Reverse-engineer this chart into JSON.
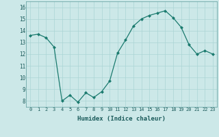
{
  "x": [
    0,
    1,
    2,
    3,
    4,
    5,
    6,
    7,
    8,
    9,
    10,
    11,
    12,
    13,
    14,
    15,
    16,
    17,
    18,
    19,
    20,
    21,
    22,
    23
  ],
  "y": [
    13.6,
    13.7,
    13.4,
    12.6,
    8.0,
    8.5,
    7.9,
    8.7,
    8.3,
    8.8,
    9.7,
    12.1,
    13.2,
    14.4,
    15.0,
    15.3,
    15.5,
    15.7,
    15.1,
    14.3,
    12.8,
    12.0,
    12.3,
    12.0
  ],
  "xlabel": "Humidex (Indice chaleur)",
  "ylim": [
    7.5,
    16.5
  ],
  "xlim": [
    -0.5,
    23.5
  ],
  "yticks": [
    8,
    9,
    10,
    11,
    12,
    13,
    14,
    15,
    16
  ],
  "xticks": [
    0,
    1,
    2,
    3,
    4,
    5,
    6,
    7,
    8,
    9,
    10,
    11,
    12,
    13,
    14,
    15,
    16,
    17,
    18,
    19,
    20,
    21,
    22,
    23
  ],
  "xtick_labels": [
    "0",
    "1",
    "2",
    "3",
    "4",
    "5",
    "6",
    "7",
    "8",
    "9",
    "10",
    "11",
    "12",
    "13",
    "14",
    "15",
    "16",
    "17",
    "18",
    "19",
    "20",
    "21",
    "22",
    "23"
  ],
  "line_color": "#1a7a6e",
  "marker_color": "#1a7a6e",
  "bg_color": "#cce8e8",
  "grid_color": "#aad4d4",
  "title": ""
}
